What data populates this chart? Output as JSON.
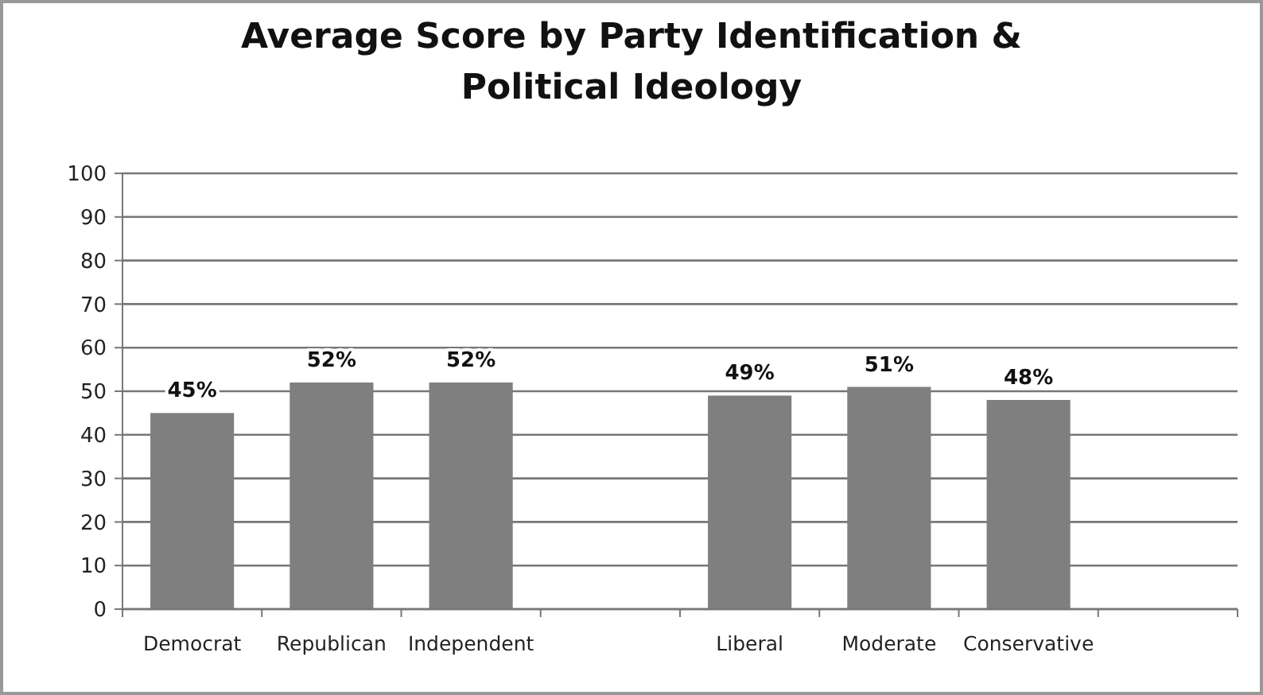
{
  "chart_data": {
    "type": "bar",
    "title": "Average Score by Party Identification & Political Ideology",
    "categories": [
      "Democrat",
      "Republican",
      "Independent",
      null,
      "Liberal",
      "Moderate",
      "Conservative",
      null
    ],
    "values": [
      45,
      52,
      52,
      null,
      49,
      51,
      48,
      null
    ],
    "value_labels": [
      "45%",
      "52%",
      "52%",
      null,
      "49%",
      "51%",
      "48%",
      null
    ],
    "color": "#7f7f7f",
    "ylim": [
      0,
      100
    ],
    "yticks": [
      0,
      10,
      20,
      30,
      40,
      50,
      60,
      70,
      80,
      90,
      100
    ],
    "grid": "y"
  }
}
